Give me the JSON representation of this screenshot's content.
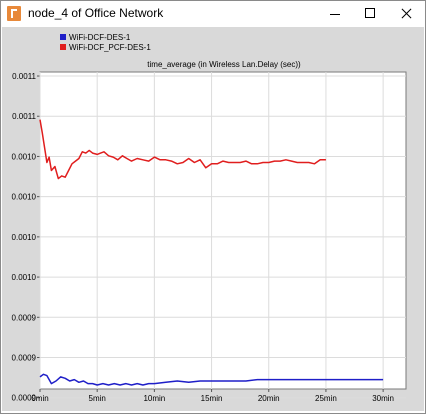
{
  "window": {
    "title": "node_4 of Office Network",
    "app_icon": "opnet-logo-icon",
    "controls": [
      "minimize-icon",
      "maximize-icon",
      "close-icon"
    ]
  },
  "colors": {
    "titlebar_bg": "#ffffff",
    "content_bg": "#d9d9d9",
    "plot_bg": "#ffffff",
    "grid": "#dcdcdc",
    "series_blue": "#1f1fc8",
    "series_red": "#e01e1e"
  },
  "legend": [
    {
      "label": "WiFi-DCF-DES-1",
      "color": "#1f1fc8"
    },
    {
      "label": "WiFi-DCF_PCF-DES-1",
      "color": "#e01e1e"
    }
  ],
  "chart_data": {
    "type": "line",
    "title": "time_average (in Wireless Lan.Delay (sec))",
    "xlabel": "",
    "ylabel": "",
    "x_unit": "min",
    "xlim": [
      0,
      32
    ],
    "ylim": [
      0.000875,
      0.0011115
    ],
    "x_ticks": [
      "0min",
      "5min",
      "10min",
      "15min",
      "20min",
      "25min",
      "30min"
    ],
    "x_tick_values": [
      0,
      5,
      10,
      15,
      20,
      25,
      30
    ],
    "y_ticks": [
      "0.0011",
      "0.0011",
      "0.0010",
      "0.0010",
      "0.0010",
      "0.0010",
      "0.0009",
      "0.0009",
      "0.0009"
    ],
    "y_tick_values": [
      0.0011085,
      0.0010785,
      0.0010485,
      0.0010185,
      0.0009885,
      0.0009585,
      0.0009285,
      0.0008985,
      0.0008685
    ],
    "grid": true,
    "legend_position": "top-left",
    "series": [
      {
        "name": "WiFi-DCF-DES-1",
        "color": "#1f1fc8",
        "x": [
          0,
          0.3,
          0.6,
          1.0,
          1.4,
          1.8,
          2.2,
          2.6,
          3.0,
          3.4,
          3.8,
          4.2,
          4.6,
          5.0,
          5.5,
          6.0,
          6.5,
          7.0,
          7.5,
          8.0,
          8.5,
          9.0,
          9.5,
          10.0,
          11.0,
          12.0,
          13.0,
          14.0,
          15.0,
          16.0,
          17.0,
          18.0,
          19.0,
          20.0,
          21.0,
          22.0,
          23.0,
          24.0,
          25.0,
          26.0,
          27.0,
          28.0,
          29.0,
          30.0
        ],
        "y": [
          0.000884,
          0.000886,
          0.000885,
          0.000879,
          0.000881,
          0.000884,
          0.000883,
          0.000881,
          0.000882,
          0.00088,
          0.000881,
          0.000879,
          0.000879,
          0.000878,
          0.000879,
          0.000878,
          0.000879,
          0.000878,
          0.000879,
          0.000878,
          0.000879,
          0.000878,
          0.000879,
          0.000879,
          0.00088,
          0.000881,
          0.00088,
          0.000881,
          0.000881,
          0.000881,
          0.000881,
          0.000881,
          0.000882,
          0.000882,
          0.000882,
          0.000882,
          0.000882,
          0.000882,
          0.000882,
          0.000882,
          0.000882,
          0.000882,
          0.000882,
          0.000882
        ]
      },
      {
        "name": "WiFi-DCF_PCF-DES-1",
        "color": "#e01e1e",
        "x": [
          0,
          0.2,
          0.4,
          0.6,
          0.8,
          1.0,
          1.3,
          1.6,
          1.9,
          2.2,
          2.5,
          2.8,
          3.1,
          3.4,
          3.7,
          4.0,
          4.3,
          4.6,
          5.0,
          5.3,
          5.6,
          6.0,
          6.4,
          6.8,
          7.2,
          7.6,
          8.0,
          8.5,
          9.0,
          9.5,
          10.0,
          10.5,
          11.0,
          11.5,
          12.0,
          12.5,
          13.0,
          13.5,
          14.0,
          14.5,
          15.0,
          15.5,
          16.0,
          16.5,
          17.0,
          17.5,
          18.0,
          18.5,
          19.0,
          19.5,
          20.0,
          20.5,
          21.0,
          21.5,
          22.0,
          22.5,
          23.0,
          23.5,
          24.0,
          24.5,
          25.0
        ],
        "y": [
          0.001076,
          0.001066,
          0.001055,
          0.001044,
          0.001048,
          0.001038,
          0.001041,
          0.001032,
          0.001034,
          0.001033,
          0.001038,
          0.001043,
          0.001045,
          0.001047,
          0.001052,
          0.001051,
          0.001053,
          0.001051,
          0.00105,
          0.001051,
          0.001052,
          0.001049,
          0.001048,
          0.001046,
          0.001049,
          0.001047,
          0.001045,
          0.001047,
          0.001046,
          0.001045,
          0.001048,
          0.001046,
          0.001046,
          0.001045,
          0.001043,
          0.001044,
          0.001047,
          0.001044,
          0.001046,
          0.00104,
          0.001043,
          0.001043,
          0.001045,
          0.001044,
          0.001044,
          0.001044,
          0.001045,
          0.001043,
          0.001043,
          0.001044,
          0.001044,
          0.001045,
          0.001045,
          0.001046,
          0.001045,
          0.001044,
          0.001044,
          0.001044,
          0.001043,
          0.001046,
          0.001046
        ]
      }
    ]
  }
}
